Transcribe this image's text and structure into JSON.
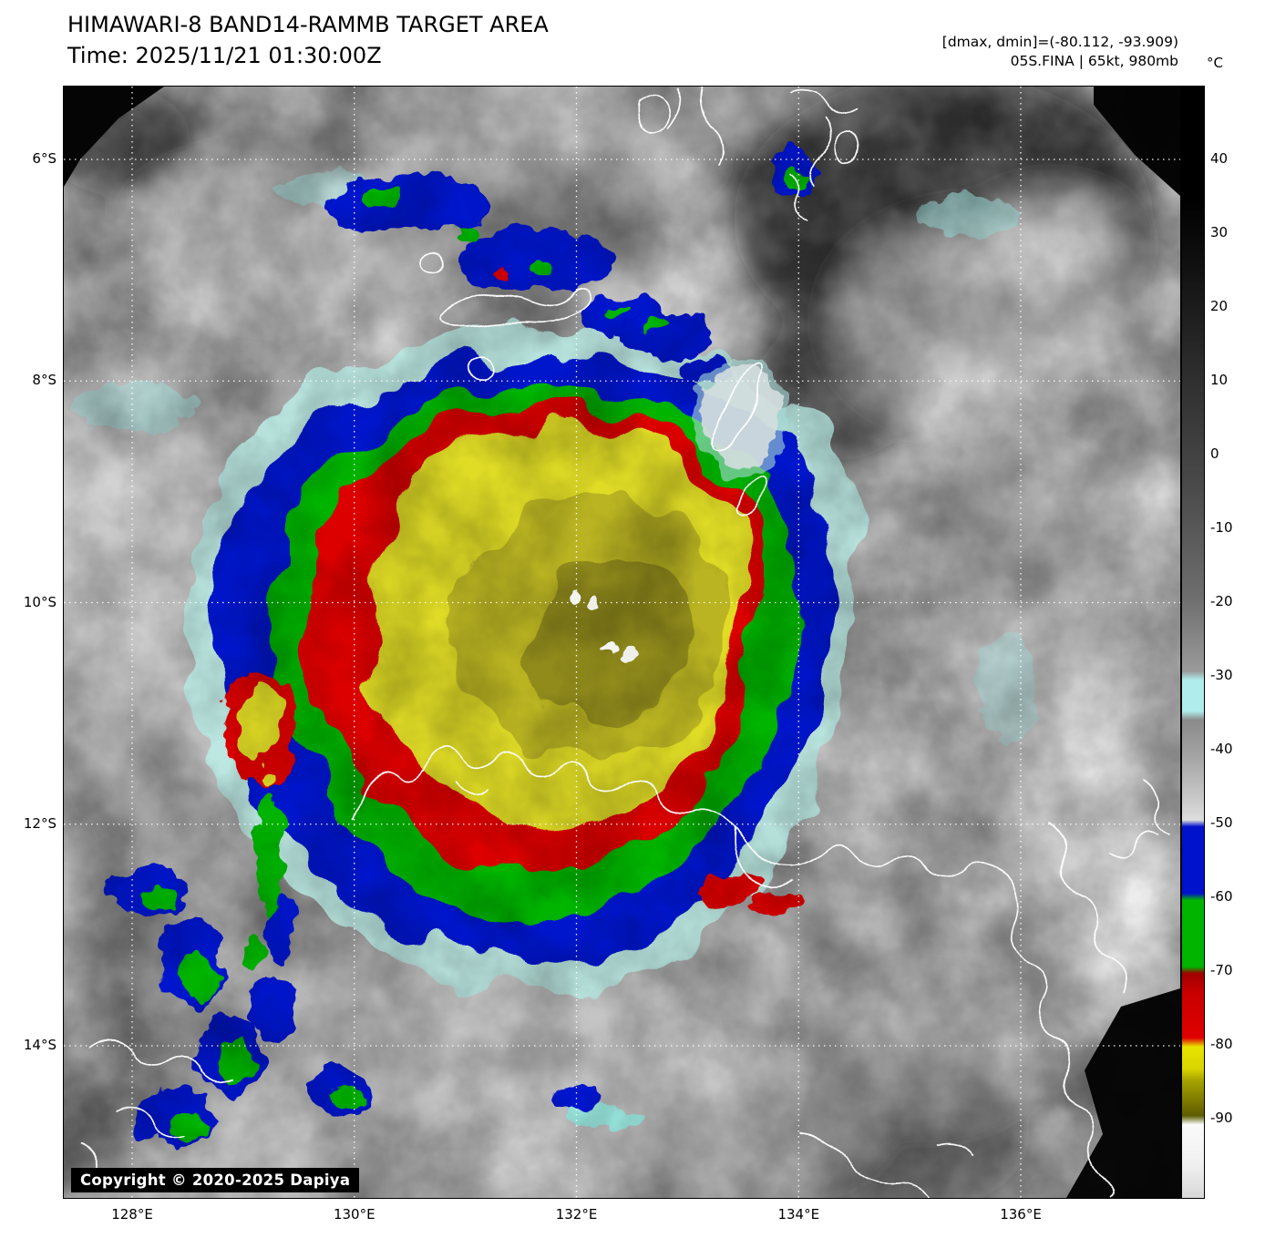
{
  "header": {
    "title": "HIMAWARI-8 BAND14-RAMMB TARGET AREA",
    "time_label": "Time: 2025/11/21 01:30:00Z",
    "dmax_dmin": "[dmax, dmin]=(-80.112, -93.909)",
    "storm_info": "05S.FINA | 65kt, 980mb"
  },
  "colorbar": {
    "unit_label": "°C",
    "tick_labels": [
      "40",
      "30",
      "20",
      "10",
      "0",
      "-10",
      "-20",
      "-30",
      "-40",
      "-50",
      "-60",
      "-70",
      "-80",
      "-90"
    ]
  },
  "axes": {
    "lat_labels": [
      "6°S",
      "8°S",
      "10°S",
      "12°S",
      "14°S"
    ],
    "lon_labels": [
      "128°E",
      "130°E",
      "132°E",
      "134°E",
      "136°E"
    ]
  },
  "footer": {
    "copyright": "Copyright © 2020-2025 Dapiya"
  },
  "palette": {
    "core_yellow": "#e0dc28",
    "cold_red": "#dc0000",
    "cold_green": "#00b400",
    "cold_blue": "#0012cc",
    "cyan_fringe": "#b8ecec",
    "background_cloud_gray": "#9a9a9a"
  }
}
